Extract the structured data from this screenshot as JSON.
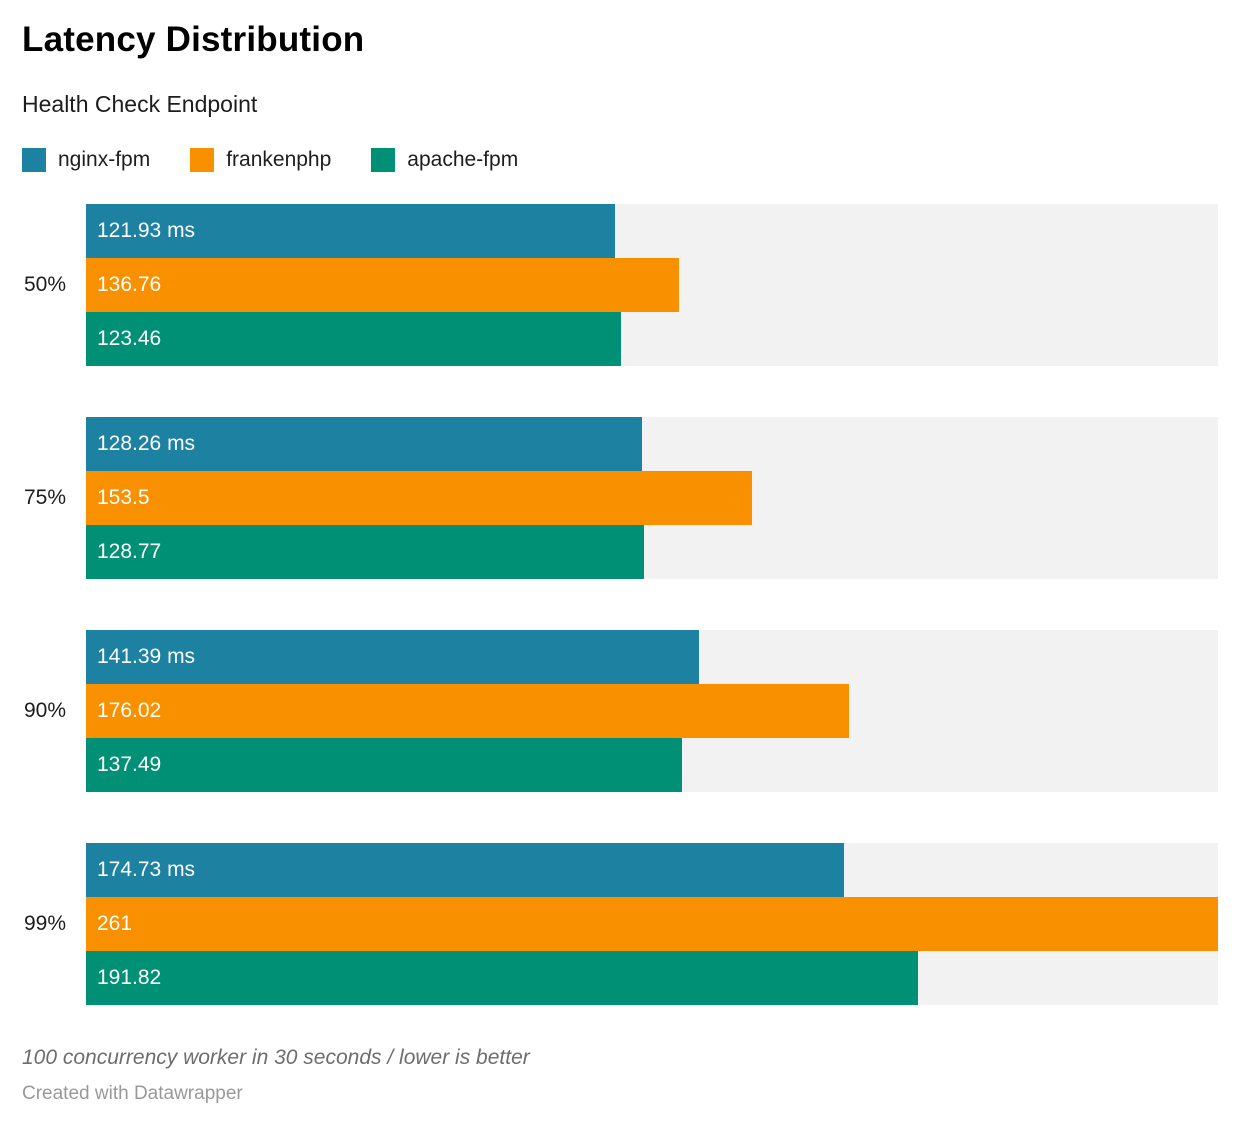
{
  "header": {
    "title": "Latency Distribution",
    "subtitle": "Health Check Endpoint"
  },
  "legend": [
    {
      "label": "nginx-fpm",
      "color": "#1d81a2"
    },
    {
      "label": "frankenphp",
      "color": "#f99000"
    },
    {
      "label": "apache-fpm",
      "color": "#009076"
    }
  ],
  "chart_data": {
    "type": "bar",
    "orientation": "horizontal",
    "title": "Latency Distribution",
    "subtitle": "Health Check Endpoint",
    "categories": [
      "50%",
      "75%",
      "90%",
      "99%"
    ],
    "series": [
      {
        "name": "nginx-fpm",
        "color": "#1d81a2",
        "values": [
          121.93,
          128.26,
          141.39,
          174.73
        ],
        "bar_labels": [
          "121.93 ms",
          "128.26 ms",
          "141.39 ms",
          "174.73 ms"
        ]
      },
      {
        "name": "frankenphp",
        "color": "#f99000",
        "values": [
          136.76,
          153.5,
          176.02,
          261
        ],
        "bar_labels": [
          "136.76",
          "153.5",
          "176.02",
          "261"
        ]
      },
      {
        "name": "apache-fpm",
        "color": "#009076",
        "values": [
          123.46,
          128.77,
          137.49,
          191.82
        ],
        "bar_labels": [
          "123.46",
          "128.77",
          "137.49",
          "191.82"
        ]
      }
    ],
    "xlim": [
      0,
      261
    ],
    "grid": false,
    "legend_position": "top",
    "track_color": "#f2f2f2",
    "value_labels_inside": true
  },
  "footer": {
    "note": "100 concurrency worker in 30 seconds / lower is better",
    "byline": "Created with Datawrapper"
  }
}
